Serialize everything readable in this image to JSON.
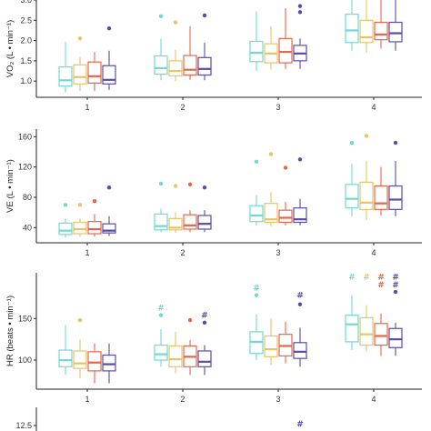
{
  "colors": [
    "#71d8d2",
    "#e8c36a",
    "#e5674b",
    "#5a4ca8"
  ],
  "chart_data": [
    {
      "type": "box",
      "ylabel": "VO₂ (L • min⁻¹)",
      "categories": [
        "1",
        "2",
        "3",
        "4"
      ],
      "ylim": [
        0.6,
        3.0
      ],
      "yticks": [
        "1.0",
        "1.5",
        "2.0",
        "2.5",
        "3.0"
      ],
      "ytick_values": [
        1.0,
        1.5,
        2.0,
        2.5,
        3.0
      ],
      "clip_top": true,
      "groups": [
        {
          "category": "1",
          "boxes": [
            {
              "min": 0.72,
              "q1": 0.88,
              "median": 1.02,
              "q3": 1.35,
              "max": 1.97,
              "outliers": []
            },
            {
              "min": 0.75,
              "q1": 0.93,
              "median": 1.1,
              "q3": 1.4,
              "max": 1.6,
              "outliers": [
                2.05
              ]
            },
            {
              "min": 0.75,
              "q1": 0.95,
              "median": 1.12,
              "q3": 1.47,
              "max": 1.72,
              "outliers": []
            },
            {
              "min": 0.78,
              "q1": 0.93,
              "median": 1.03,
              "q3": 1.38,
              "max": 1.75,
              "outliers": [
                2.3
              ]
            }
          ]
        },
        {
          "category": "2",
          "boxes": [
            {
              "min": 1.02,
              "q1": 1.17,
              "median": 1.32,
              "q3": 1.62,
              "max": 2.05,
              "outliers": [
                2.6
              ]
            },
            {
              "min": 1.0,
              "q1": 1.13,
              "median": 1.25,
              "q3": 1.5,
              "max": 1.78,
              "outliers": [
                2.45
              ]
            },
            {
              "min": 1.03,
              "q1": 1.15,
              "median": 1.28,
              "q3": 1.63,
              "max": 2.35,
              "outliers": []
            },
            {
              "min": 1.02,
              "q1": 1.15,
              "median": 1.3,
              "q3": 1.58,
              "max": 1.95,
              "outliers": [
                2.62
              ]
            }
          ]
        },
        {
          "category": "3",
          "boxes": [
            {
              "min": 1.25,
              "q1": 1.48,
              "median": 1.7,
              "q3": 1.98,
              "max": 2.72,
              "outliers": [
                3.07
              ]
            },
            {
              "min": 1.28,
              "q1": 1.45,
              "median": 1.68,
              "q3": 1.92,
              "max": 2.35,
              "outliers": [
                3.08
              ]
            },
            {
              "min": 1.3,
              "q1": 1.45,
              "median": 1.72,
              "q3": 2.05,
              "max": 2.8,
              "outliers": []
            },
            {
              "min": 1.3,
              "q1": 1.5,
              "median": 1.68,
              "q3": 1.88,
              "max": 2.05,
              "outliers": [
                2.7,
                2.85
              ]
            }
          ]
        },
        {
          "category": "4",
          "boxes": [
            {
              "min": 1.75,
              "q1": 1.95,
              "median": 2.25,
              "q3": 2.65,
              "max": 3.05,
              "outliers": []
            },
            {
              "min": 1.7,
              "q1": 1.95,
              "median": 2.08,
              "q3": 2.5,
              "max": 3.05,
              "outliers": []
            },
            {
              "min": 1.8,
              "q1": 2.02,
              "median": 2.15,
              "q3": 2.45,
              "max": 3.05,
              "outliers": []
            },
            {
              "min": 1.75,
              "q1": 1.97,
              "median": 2.18,
              "q3": 2.45,
              "max": 3.05,
              "outliers": []
            }
          ]
        }
      ],
      "markers": []
    },
    {
      "type": "box",
      "ylabel": "VE (L • min⁻¹)",
      "categories": [
        "1",
        "2",
        "3",
        "4"
      ],
      "ylim": [
        20,
        170
      ],
      "yticks": [
        "40",
        "80",
        "120",
        "160"
      ],
      "ytick_values": [
        40,
        80,
        120,
        160
      ],
      "clip_top": false,
      "groups": [
        {
          "category": "1",
          "boxes": [
            {
              "min": 27,
              "q1": 31,
              "median": 36,
              "q3": 46,
              "max": 52,
              "outliers": [
                70
              ]
            },
            {
              "min": 28,
              "q1": 32,
              "median": 38,
              "q3": 47,
              "max": 52,
              "outliers": [
                70
              ]
            },
            {
              "min": 28,
              "q1": 32,
              "median": 38,
              "q3": 48,
              "max": 58,
              "outliers": [
                75
              ]
            },
            {
              "min": 29,
              "q1": 33,
              "median": 36,
              "q3": 45,
              "max": 55,
              "outliers": [
                93
              ]
            }
          ]
        },
        {
          "category": "2",
          "boxes": [
            {
              "min": 34,
              "q1": 37,
              "median": 42,
              "q3": 58,
              "max": 65,
              "outliers": [
                98
              ]
            },
            {
              "min": 33,
              "q1": 37,
              "median": 40,
              "q3": 52,
              "max": 60,
              "outliers": [
                95
              ]
            },
            {
              "min": 34,
              "q1": 38,
              "median": 43,
              "q3": 57,
              "max": 63,
              "outliers": [
                97
              ]
            },
            {
              "min": 34,
              "q1": 38,
              "median": 45,
              "q3": 56,
              "max": 63,
              "outliers": [
                93
              ]
            }
          ]
        },
        {
          "category": "3",
          "boxes": [
            {
              "min": 43,
              "q1": 48,
              "median": 56,
              "q3": 69,
              "max": 83,
              "outliers": [
                127
              ]
            },
            {
              "min": 42,
              "q1": 47,
              "median": 51,
              "q3": 72,
              "max": 87,
              "outliers": [
                137
              ]
            },
            {
              "min": 43,
              "q1": 47,
              "median": 53,
              "q3": 63,
              "max": 74,
              "outliers": [
                119
              ]
            },
            {
              "min": 43,
              "q1": 47,
              "median": 51,
              "q3": 66,
              "max": 78,
              "outliers": [
                130
              ]
            }
          ]
        },
        {
          "category": "4",
          "boxes": [
            {
              "min": 55,
              "q1": 66,
              "median": 78,
              "q3": 97,
              "max": 124,
              "outliers": [
                152
              ]
            },
            {
              "min": 50,
              "q1": 64,
              "median": 73,
              "q3": 100,
              "max": 128,
              "outliers": [
                161
              ]
            },
            {
              "min": 56,
              "q1": 64,
              "median": 72,
              "q3": 95,
              "max": 120,
              "outliers": []
            },
            {
              "min": 55,
              "q1": 64,
              "median": 77,
              "q3": 95,
              "max": 128,
              "outliers": [
                152
              ]
            }
          ]
        }
      ],
      "markers": []
    },
    {
      "type": "box",
      "ylabel": "HR (beats • min⁻¹)",
      "categories": [
        "1",
        "2",
        "3",
        "4"
      ],
      "ylim": [
        65,
        205
      ],
      "yticks": [
        "100",
        "150"
      ],
      "ytick_values": [
        100,
        150
      ],
      "clip_top": false,
      "groups": [
        {
          "category": "1",
          "boxes": [
            {
              "min": 82,
              "q1": 92,
              "median": 100,
              "q3": 112,
              "max": 142,
              "outliers": []
            },
            {
              "min": 78,
              "q1": 90,
              "median": 96,
              "q3": 111,
              "max": 125,
              "outliers": [
                148
              ]
            },
            {
              "min": 72,
              "q1": 87,
              "median": 97,
              "q3": 110,
              "max": 120,
              "outliers": []
            },
            {
              "min": 72,
              "q1": 87,
              "median": 95,
              "q3": 106,
              "max": 120,
              "outliers": []
            }
          ]
        },
        {
          "category": "2",
          "boxes": [
            {
              "min": 92,
              "q1": 100,
              "median": 107,
              "q3": 118,
              "max": 137,
              "outliers": [
                154
              ]
            },
            {
              "min": 84,
              "q1": 92,
              "median": 101,
              "q3": 117,
              "max": 134,
              "outliers": []
            },
            {
              "min": 82,
              "q1": 92,
              "median": 104,
              "q3": 117,
              "max": 124,
              "outliers": [
                148
              ]
            },
            {
              "min": 82,
              "q1": 92,
              "median": 98,
              "q3": 111,
              "max": 118,
              "outliers": [
                145
              ]
            }
          ]
        },
        {
          "category": "3",
          "boxes": [
            {
              "min": 100,
              "q1": 108,
              "median": 122,
              "q3": 134,
              "max": 155,
              "outliers": [
                178
              ]
            },
            {
              "min": 94,
              "q1": 104,
              "median": 113,
              "q3": 129,
              "max": 150,
              "outliers": []
            },
            {
              "min": 96,
              "q1": 105,
              "median": 117,
              "q3": 131,
              "max": 146,
              "outliers": []
            },
            {
              "min": 92,
              "q1": 102,
              "median": 110,
              "q3": 121,
              "max": 139,
              "outliers": [
                167
              ]
            }
          ]
        },
        {
          "category": "4",
          "boxes": [
            {
              "min": 112,
              "q1": 122,
              "median": 143,
              "q3": 154,
              "max": 178,
              "outliers": []
            },
            {
              "min": 110,
              "q1": 118,
              "median": 131,
              "q3": 151,
              "max": 166,
              "outliers": []
            },
            {
              "min": 105,
              "q1": 118,
              "median": 129,
              "q3": 144,
              "max": 156,
              "outliers": []
            },
            {
              "min": 105,
              "q1": 115,
              "median": 125,
              "q3": 138,
              "max": 145,
              "outliers": [
                182
              ]
            }
          ]
        }
      ],
      "markers": [
        {
          "category": "2",
          "box": 0,
          "y": 163,
          "text": "#"
        },
        {
          "category": "2",
          "box": 3,
          "y": 154,
          "text": "#"
        },
        {
          "category": "3",
          "box": 0,
          "y": 187,
          "text": "#"
        },
        {
          "category": "3",
          "box": 3,
          "y": 178,
          "text": "#"
        },
        {
          "category": "4",
          "box": 0,
          "y": 200,
          "text": "#"
        },
        {
          "category": "4",
          "box": 1,
          "y": 200,
          "text": "#"
        },
        {
          "category": "4",
          "box": 2,
          "y": 200,
          "text": "#"
        },
        {
          "category": "4",
          "box": 3,
          "y": 200,
          "text": "#"
        },
        {
          "category": "4",
          "box": 2,
          "y": 191,
          "text": "#"
        },
        {
          "category": "4",
          "box": 3,
          "y": 191,
          "text": "#"
        }
      ]
    },
    {
      "type": "box",
      "ylabel": "",
      "categories": [
        "1",
        "2",
        "3",
        "4"
      ],
      "yticks": [
        "12.5"
      ],
      "ytick_values": [
        12.5
      ],
      "partial": true,
      "markers": [
        {
          "category": "3",
          "box": 3,
          "text": "#"
        }
      ]
    }
  ]
}
